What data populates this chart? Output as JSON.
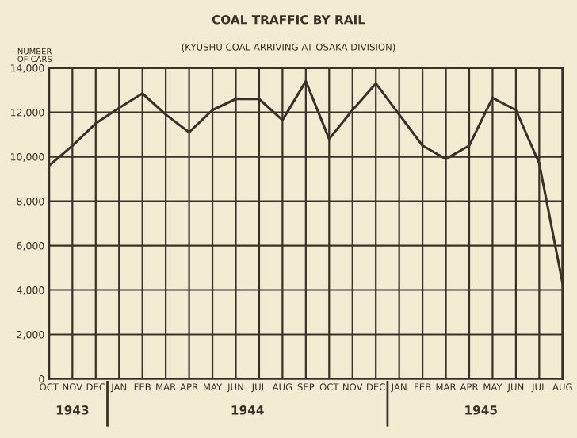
{
  "chart_data": {
    "type": "line",
    "title": "COAL TRAFFIC BY RAIL",
    "subtitle": "(KYUSHU COAL ARRIVING AT OSAKA DIVISION)",
    "ylabel": "NUMBER\nOF CARS",
    "categories": [
      "OCT",
      "NOV",
      "DEC",
      "JAN",
      "FEB",
      "MAR",
      "APR",
      "MAY",
      "JUN",
      "JUL",
      "AUG",
      "SEP",
      "OCT",
      "NOV",
      "DEC",
      "JAN",
      "FEB",
      "MAR",
      "APR",
      "MAY",
      "JUN",
      "JUL",
      "AUG"
    ],
    "series": [
      {
        "color": "#3a3228",
        "values": [
          9600,
          10500,
          11500,
          12200,
          12850,
          11900,
          11100,
          12100,
          12600,
          12600,
          11650,
          13400,
          10800,
          12100,
          13300,
          11900,
          10500,
          9900,
          10500,
          12650,
          12100,
          9700,
          4300
        ]
      }
    ],
    "ylim": [
      0,
      14000
    ],
    "yticks": [
      {
        "value": 0,
        "label": "0"
      },
      {
        "value": 2000,
        "label": "2,000"
      },
      {
        "value": 4000,
        "label": "4,000"
      },
      {
        "value": 6000,
        "label": "6,000"
      },
      {
        "value": 8000,
        "label": "8,000"
      },
      {
        "value": 10000,
        "label": "10,000"
      },
      {
        "value": 12000,
        "label": "12,000"
      },
      {
        "value": 14000,
        "label": "14,000"
      }
    ],
    "grid": true,
    "marker": "none",
    "line_style": "solid",
    "annotations": [
      "1943",
      "1944",
      "1945"
    ]
  }
}
